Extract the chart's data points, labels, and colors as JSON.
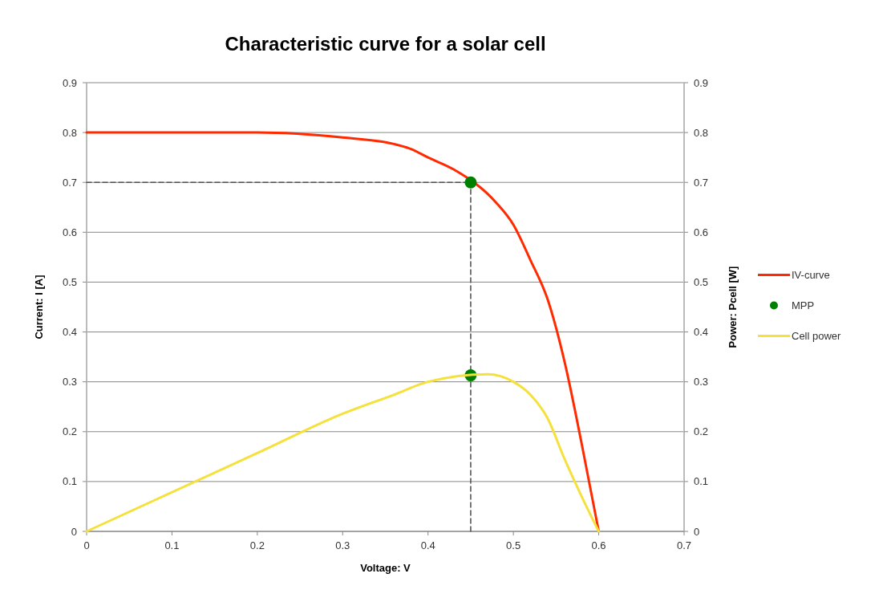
{
  "chart_data": {
    "type": "line",
    "title": "Characteristic curve for a solar cell",
    "xlabel": "Voltage: V",
    "ylabel": "Current: I [A]",
    "y2label": "Power: Pcell [W]",
    "xlim": [
      0,
      0.7
    ],
    "xticks": [
      0,
      0.1,
      0.2,
      0.3,
      0.4,
      0.5,
      0.6,
      0.7
    ],
    "ylim": [
      0,
      0.9
    ],
    "yticks": [
      0,
      0.1,
      0.2,
      0.3,
      0.4,
      0.5,
      0.6,
      0.7,
      0.8,
      0.9
    ],
    "y2lim": [
      0,
      0.9
    ],
    "y2ticks": [
      0,
      0.1,
      0.2,
      0.3,
      0.4,
      0.5,
      0.6,
      0.7,
      0.8,
      0.9
    ],
    "grid": "y",
    "legend": "right",
    "series": [
      {
        "line_style": "dashed",
        "color": "#555555",
        "x": [
          0,
          0.45
        ],
        "values": [
          0.7,
          0.7
        ]
      },
      {
        "line_style": "dashed",
        "color": "#555555",
        "x": [
          0.45,
          0.45
        ],
        "values": [
          0,
          0.7
        ]
      },
      {
        "name": "IV-curve",
        "color": "#ff2a00",
        "x": [
          0,
          0.1,
          0.2,
          0.3,
          0.36,
          0.38,
          0.4,
          0.43,
          0.48,
          0.5,
          0.52,
          0.54,
          0.56,
          0.58,
          0.6
        ],
        "values": [
          0.8,
          0.8,
          0.8,
          0.79,
          0.777,
          0.767,
          0.75,
          0.726,
          0.659,
          0.615,
          0.544,
          0.466,
          0.34,
          0.176,
          0
        ]
      },
      {
        "name": "MPP",
        "type": "scatter",
        "marker": "circle",
        "color": "#008000",
        "x": [
          0.45,
          0.45
        ],
        "values": [
          0.7,
          0.313
        ]
      },
      {
        "name": "Cell power",
        "color": "#f5e13c",
        "x": [
          0,
          0.2,
          0.3,
          0.36,
          0.4,
          0.47,
          0.5,
          0.52,
          0.54,
          0.56,
          0.58,
          0.6
        ],
        "values": [
          0,
          0.157,
          0.236,
          0.274,
          0.3,
          0.315,
          0.3,
          0.274,
          0.227,
          0.145,
          0.07,
          0
        ]
      }
    ]
  }
}
